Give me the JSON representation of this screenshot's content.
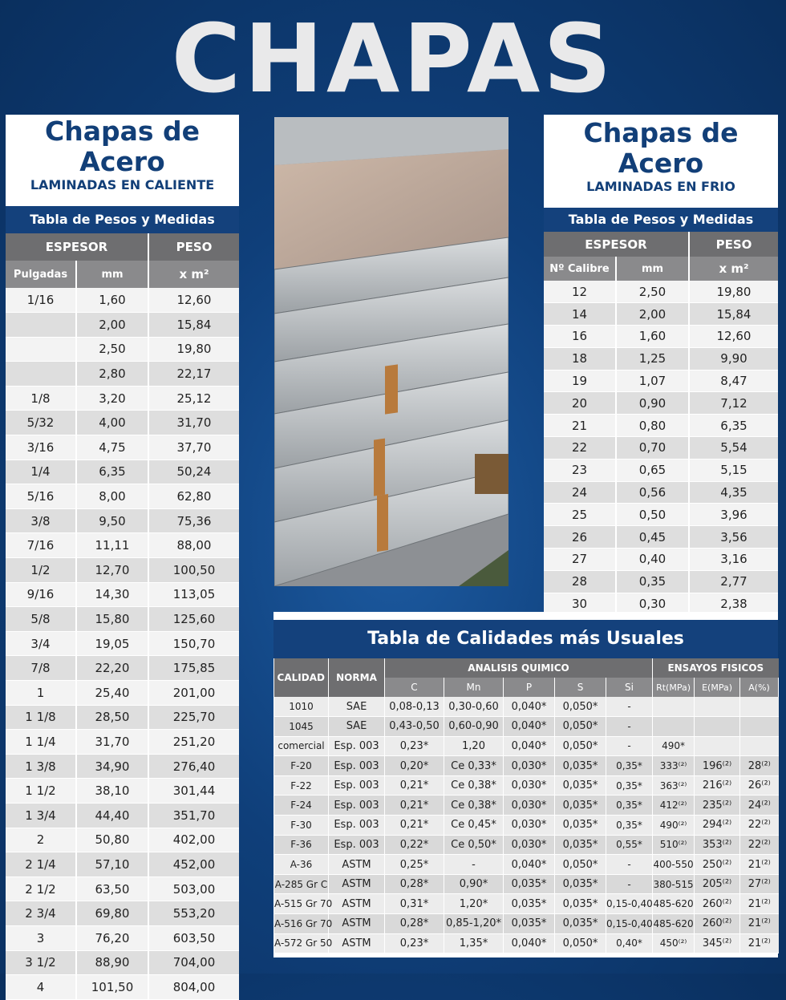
{
  "page_title": "CHAPAS",
  "hot": {
    "title": "Chapas de Acero",
    "subtitle": "LAMINADAS EN CALIENTE",
    "bar": "Tabla de Pesos y Medidas",
    "h_espesor": "ESPESOR",
    "h_peso": "PESO",
    "h_pulgadas": "Pulgadas",
    "h_mm": "mm",
    "h_xm2": "x m²",
    "rows": [
      [
        "1/16",
        "1,60",
        "12,60"
      ],
      [
        "",
        "2,00",
        "15,84"
      ],
      [
        "",
        "2,50",
        "19,80"
      ],
      [
        "",
        "2,80",
        "22,17"
      ],
      [
        "1/8",
        "3,20",
        "25,12"
      ],
      [
        "5/32",
        "4,00",
        "31,70"
      ],
      [
        "3/16",
        "4,75",
        "37,70"
      ],
      [
        "1/4",
        "6,35",
        "50,24"
      ],
      [
        "5/16",
        "8,00",
        "62,80"
      ],
      [
        "3/8",
        "9,50",
        "75,36"
      ],
      [
        "7/16",
        "11,11",
        "88,00"
      ],
      [
        "1/2",
        "12,70",
        "100,50"
      ],
      [
        "9/16",
        "14,30",
        "113,05"
      ],
      [
        "5/8",
        "15,80",
        "125,60"
      ],
      [
        "3/4",
        "19,05",
        "150,70"
      ],
      [
        "7/8",
        "22,20",
        "175,85"
      ],
      [
        "1",
        "25,40",
        "201,00"
      ],
      [
        "1  1/8",
        "28,50",
        "225,70"
      ],
      [
        "1  1/4",
        "31,70",
        "251,20"
      ],
      [
        "1  3/8",
        "34,90",
        "276,40"
      ],
      [
        "1  1/2",
        "38,10",
        "301,44"
      ],
      [
        "1  3/4",
        "44,40",
        "351,70"
      ],
      [
        "2",
        "50,80",
        "402,00"
      ],
      [
        "2  1/4",
        "57,10",
        "452,00"
      ],
      [
        "2  1/2",
        "63,50",
        "503,00"
      ],
      [
        "2  3/4",
        "69,80",
        "553,20"
      ],
      [
        "3",
        "76,20",
        "603,50"
      ],
      [
        "3  1/2",
        "88,90",
        "704,00"
      ],
      [
        "4",
        "101,50",
        "804,00"
      ]
    ]
  },
  "cold": {
    "title": "Chapas de Acero",
    "subtitle": "LAMINADAS EN FRIO",
    "bar": "Tabla de Pesos y Medidas",
    "h_espesor": "ESPESOR",
    "h_peso": "PESO",
    "h_calibre": "Nº Calibre",
    "h_mm": "mm",
    "h_xm2": "x m²",
    "rows": [
      [
        "12",
        "2,50",
        "19,80"
      ],
      [
        "14",
        "2,00",
        "15,84"
      ],
      [
        "16",
        "1,60",
        "12,60"
      ],
      [
        "18",
        "1,25",
        "9,90"
      ],
      [
        "19",
        "1,07",
        "8,47"
      ],
      [
        "20",
        "0,90",
        "7,12"
      ],
      [
        "21",
        "0,80",
        "6,35"
      ],
      [
        "22",
        "0,70",
        "5,54"
      ],
      [
        "23",
        "0,65",
        "5,15"
      ],
      [
        "24",
        "0,56",
        "4,35"
      ],
      [
        "25",
        "0,50",
        "3,96"
      ],
      [
        "26",
        "0,45",
        "3,56"
      ],
      [
        "27",
        "0,40",
        "3,16"
      ],
      [
        "28",
        "0,35",
        "2,77"
      ],
      [
        "30",
        "0,30",
        "2,38"
      ]
    ]
  },
  "quality": {
    "title": "Tabla de Calidades más Usuales",
    "h_calidad": "CALIDAD",
    "h_norma": "NORMA",
    "h_analisis": "ANALISIS QUIMICO",
    "h_ensayos": "ENSAYOS FISICOS",
    "cols": [
      "C",
      "Mn",
      "P",
      "S",
      "Si",
      "Rt(MPa)",
      "E(MPa)",
      "A(%)"
    ],
    "rows": [
      [
        "1010",
        "SAE",
        "0,08-0,13",
        "0,30-0,60",
        "0,040*",
        "0,050*",
        "-",
        "",
        "",
        ""
      ],
      [
        "1045",
        "SAE",
        "0,43-0,50",
        "0,60-0,90",
        "0,040*",
        "0,050*",
        "-",
        "",
        "",
        ""
      ],
      [
        "comercial",
        "Esp. 003",
        "0,23*",
        "1,20",
        "0,040*",
        "0,050*",
        "-",
        "490*",
        "",
        ""
      ],
      [
        "F-20",
        "Esp. 003",
        "0,20*",
        "Ce 0,33*",
        "0,030*",
        "0,035*",
        "0,35*",
        "333⁽²⁾",
        "196⁽²⁾",
        "28⁽²⁾"
      ],
      [
        "F-22",
        "Esp. 003",
        "0,21*",
        "Ce 0,38*",
        "0,030*",
        "0,035*",
        "0,35*",
        "363⁽²⁾",
        "216⁽²⁾",
        "26⁽²⁾"
      ],
      [
        "F-24",
        "Esp. 003",
        "0,21*",
        "Ce 0,38*",
        "0,030*",
        "0,035*",
        "0,35*",
        "412⁽²⁾",
        "235⁽²⁾",
        "24⁽²⁾"
      ],
      [
        "F-30",
        "Esp. 003",
        "0,21*",
        "Ce 0,45*",
        "0,030*",
        "0,035*",
        "0,35*",
        "490⁽²⁾",
        "294⁽²⁾",
        "22⁽²⁾"
      ],
      [
        "F-36",
        "Esp. 003",
        "0,22*",
        "Ce 0,50*",
        "0,030*",
        "0,035*",
        "0,55*",
        "510⁽²⁾",
        "353⁽²⁾",
        "22⁽²⁾"
      ],
      [
        "A-36",
        "ASTM",
        "0,25*",
        "-",
        "0,040*",
        "0,050*",
        "-",
        "400-550",
        "250⁽²⁾",
        "21⁽²⁾"
      ],
      [
        "A-285 Gr C",
        "ASTM",
        "0,28*",
        "0,90*",
        "0,035*",
        "0,035*",
        "-",
        "380-515",
        "205⁽²⁾",
        "27⁽²⁾"
      ],
      [
        "A-515 Gr 70",
        "ASTM",
        "0,31*",
        "1,20*",
        "0,035*",
        "0,035*",
        "0,15-0,40",
        "485-620",
        "260⁽²⁾",
        "21⁽²⁾"
      ],
      [
        "A-516 Gr 70",
        "ASTM",
        "0,28*",
        "0,85-1,20*",
        "0,035*",
        "0,035*",
        "0,15-0,40",
        "485-620",
        "260⁽²⁾",
        "21⁽²⁾"
      ],
      [
        "A-572 Gr 50",
        "ASTM",
        "0,23*",
        "1,35*",
        "0,040*",
        "0,050*",
        "0,40*",
        "450⁽²⁾",
        "345⁽²⁾",
        "21⁽²⁾"
      ]
    ]
  }
}
